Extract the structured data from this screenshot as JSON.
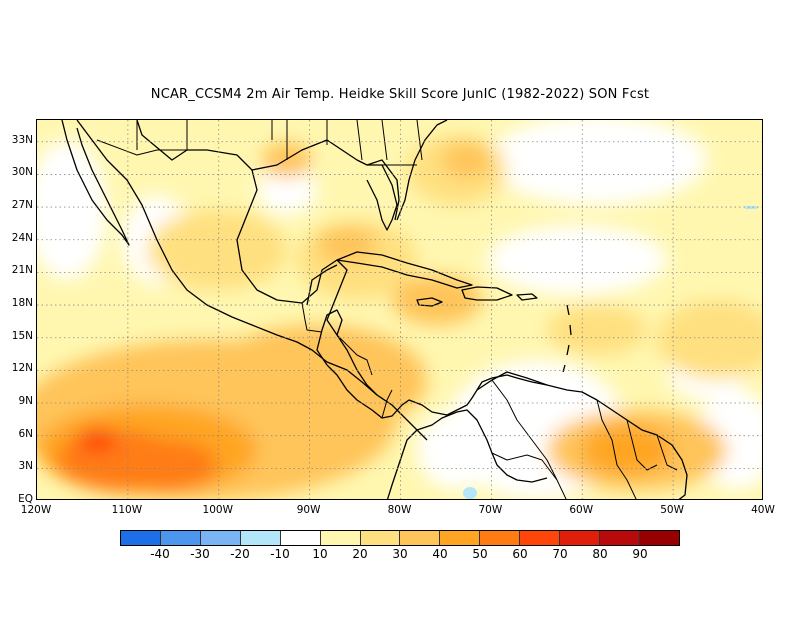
{
  "title": "NCAR_CCSM4  2m Air Temp. Heidke Skill Score JunIC (1982-2022) SON Fcst",
  "map": {
    "lon_range": [
      -120,
      -40
    ],
    "lat_range": [
      0,
      35
    ],
    "lat_labels": [
      "33N",
      "30N",
      "27N",
      "24N",
      "21N",
      "18N",
      "15N",
      "12N",
      "9N",
      "6N",
      "3N",
      "EQ"
    ],
    "lat_values": [
      33,
      30,
      27,
      24,
      21,
      18,
      15,
      12,
      9,
      6,
      3,
      0
    ],
    "lon_labels": [
      "120W",
      "110W",
      "100W",
      "90W",
      "80W",
      "70W",
      "60W",
      "50W",
      "40W"
    ],
    "lon_values": [
      -120,
      -110,
      -100,
      -90,
      -80,
      -70,
      -60,
      -50,
      -40
    ],
    "gridlines": "dotted"
  },
  "colorbar": {
    "colors": [
      "#1e6ee8",
      "#4c96f0",
      "#7ab4f5",
      "#b4e6fa",
      "#ffffff",
      "#fff7b0",
      "#ffe080",
      "#ffc45a",
      "#ffa523",
      "#ff7c14",
      "#ff460a",
      "#e01e0a",
      "#b80a0a",
      "#960000"
    ],
    "labels": [
      "-40",
      "-30",
      "-20",
      "-10",
      "10",
      "20",
      "30",
      "40",
      "50",
      "60",
      "70",
      "80",
      "90"
    ]
  }
}
